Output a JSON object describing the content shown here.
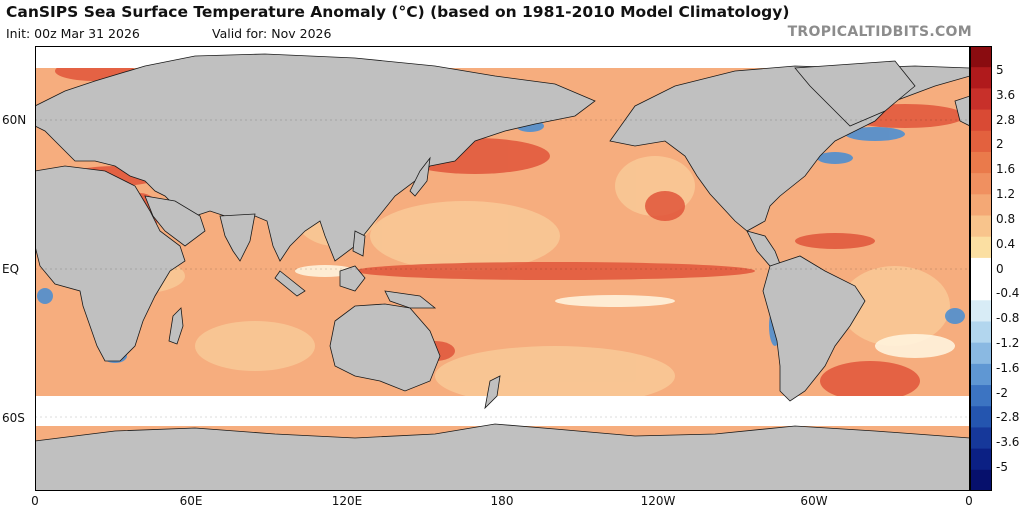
{
  "header": {
    "title": "CanSIPS Sea Surface Temperature Anomaly (°C) (based on 1981-2010 Model Climatology)",
    "init": "Init: 00z Mar 31 2026",
    "valid": "Valid for: Nov 2026",
    "brand": "TROPICALTIDBITS.COM"
  },
  "axes": {
    "lat_labels": [
      "60N",
      "EQ",
      "60S"
    ],
    "lon_labels": [
      "0",
      "60E",
      "120E",
      "180",
      "120W",
      "60W",
      "0"
    ]
  },
  "colorbar": {
    "labels": [
      "5",
      "3.6",
      "2.8",
      "2",
      "1.6",
      "1.2",
      "0.8",
      "0.4",
      "0",
      "-0.4",
      "-0.8",
      "-1.2",
      "-1.6",
      "-2",
      "-2.8",
      "-3.6",
      "-5"
    ],
    "colors": [
      "#8a0c10",
      "#b01a1c",
      "#c8302a",
      "#d94a34",
      "#e3613e",
      "#ea7a4b",
      "#f09060",
      "#f4a875",
      "#f8c48c",
      "#fbdfa2",
      "#ffffff",
      "#ffffff",
      "#d8ecf6",
      "#b2d6ee",
      "#8ab9e2",
      "#5f97d3",
      "#3c74c2",
      "#2455af",
      "#16389a",
      "#0b2084",
      "#06106c"
    ]
  },
  "map": {
    "land_color": "#c0c0c0",
    "ocean_color": "#f6ad7e",
    "ice_color": "#ffffff",
    "warm_strong": "#e0553a",
    "cool": "#4f8fd0"
  }
}
